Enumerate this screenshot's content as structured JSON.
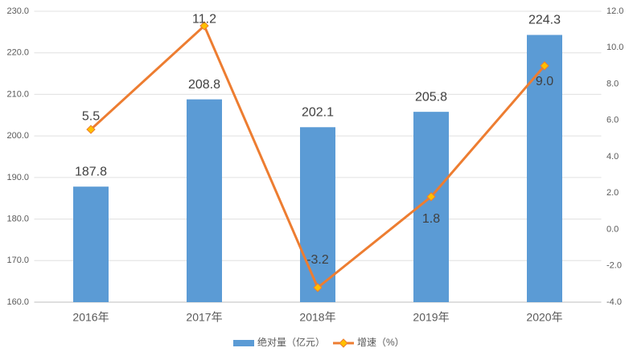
{
  "chart_data": {
    "type": "bar-line",
    "categories": [
      "2016年",
      "2017年",
      "2018年",
      "2019年",
      "2020年"
    ],
    "series": [
      {
        "name": "绝对量（亿元）",
        "color": "#5b9bd5",
        "type": "bar",
        "values": [
          187.8,
          208.8,
          202.1,
          205.8,
          224.3
        ]
      },
      {
        "name": "增速（%）",
        "color": "#ed7d31",
        "marker_color": "#ffc000",
        "type": "line",
        "axis": "y2",
        "values": [
          5.5,
          11.2,
          -3.2,
          1.8,
          9.0
        ],
        "value_labels": [
          "5.5",
          "11.2",
          "-3.2",
          "1.8",
          "9.0"
        ]
      }
    ],
    "ylim": [
      160,
      230
    ],
    "yticks": [
      {
        "value": 160,
        "label": "160.0"
      },
      {
        "value": 170,
        "label": "170.0"
      },
      {
        "value": 180,
        "label": "180.0"
      },
      {
        "value": 190,
        "label": "190.0"
      },
      {
        "value": 200,
        "label": "200.0"
      },
      {
        "value": 210,
        "label": "210.0"
      },
      {
        "value": 220,
        "label": "220.0"
      },
      {
        "value": 230,
        "label": "230.0"
      }
    ],
    "y2lim": [
      -4,
      12
    ],
    "y2ticks": [
      {
        "value": -4,
        "label": "-4.0"
      },
      {
        "value": -2,
        "label": "-2.0"
      },
      {
        "value": 0,
        "label": "0.0"
      },
      {
        "value": 2,
        "label": "2.0"
      },
      {
        "value": 4,
        "label": "4.0"
      },
      {
        "value": 6,
        "label": "6.0"
      },
      {
        "value": 8,
        "label": "8.0"
      },
      {
        "value": 10,
        "label": "10.0"
      },
      {
        "value": 12,
        "label": "12.0"
      }
    ],
    "grid": true,
    "legend": "bottom"
  }
}
